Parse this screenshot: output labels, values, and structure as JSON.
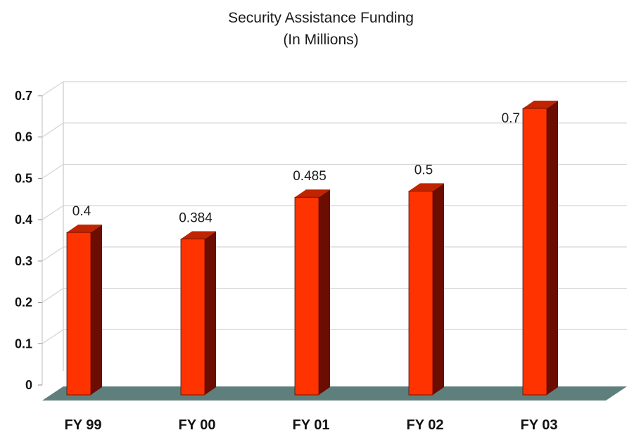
{
  "chart_data": {
    "type": "bar",
    "title": "Security Assistance Funding",
    "subtitle": "(In Millions)",
    "xlabel": "",
    "ylabel": "",
    "categories": [
      "FY 99",
      "FY 00",
      "FY 01",
      "FY 02",
      "FY 03"
    ],
    "values": [
      0.4,
      0.384,
      0.485,
      0.5,
      0.7
    ],
    "data_labels": [
      "0.4",
      "0.384",
      "0.485",
      "0.5",
      "0.7"
    ],
    "ylim": [
      0,
      0.7
    ],
    "yticks": [
      "0",
      "0.1",
      "0.2",
      "0.3",
      "0.4",
      "0.5",
      "0.6",
      "0.7"
    ],
    "grid": true,
    "legend": "none",
    "style": "3d",
    "colors": {
      "bar_front": "#ff3300",
      "bar_side": "#6b0d00",
      "bar_top": "#c02400",
      "floor": "#5e7f7c",
      "gridline": "#d4d4d4",
      "wall": "#ffffff"
    }
  }
}
